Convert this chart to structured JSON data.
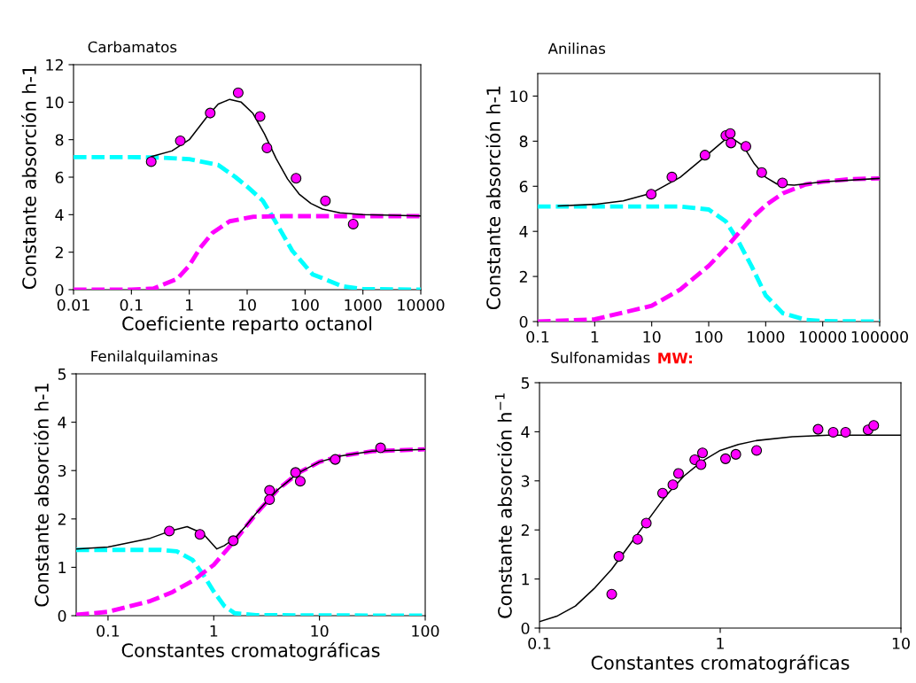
{
  "chart_data": [
    {
      "type": "scatter",
      "title": "Carbamatos",
      "xlabel": "Coeficiente reparto octanol",
      "ylabel": "Constante absorción h-1",
      "log": "x",
      "xlim": [
        0.01,
        10000
      ],
      "xticks": [
        0.01,
        0.1,
        1,
        10,
        100,
        1000,
        10000
      ],
      "ylim": [
        0,
        12
      ],
      "yticks": [
        0,
        2,
        4,
        6,
        8,
        10,
        12
      ],
      "series": [
        {
          "type": "line",
          "color": "#00ffff",
          "line_style": "dashed",
          "marker": "none",
          "x": [
            0.01,
            0.1,
            0.3,
            1,
            3.16,
            6.3,
            10,
            18.6,
            29.5,
            60,
            135,
            437,
            1000,
            10000
          ],
          "values": [
            7.07,
            7.07,
            7.05,
            6.96,
            6.65,
            6.0,
            5.5,
            4.75,
            3.73,
            2.08,
            0.82,
            0.19,
            0.03,
            0
          ]
        },
        {
          "type": "line",
          "color": "#ff00ff",
          "line_style": "dashed",
          "marker": "none",
          "x": [
            0.01,
            0.1,
            0.24,
            0.62,
            1,
            1.55,
            2.5,
            5,
            12.9,
            40,
            10000
          ],
          "values": [
            0,
            0,
            0.06,
            0.58,
            1.29,
            2.24,
            3.02,
            3.65,
            3.89,
            3.92,
            3.92
          ]
        },
        {
          "type": "line",
          "color": "#000000",
          "line_style": "solid",
          "marker": "none",
          "x": [
            0.22,
            0.5,
            1,
            2,
            3.16,
            5,
            7.9,
            12.6,
            20,
            31.6,
            50,
            79,
            126,
            200,
            400,
            1000,
            10000
          ],
          "values": [
            7.1,
            7.4,
            8.0,
            9.2,
            9.9,
            10.15,
            10.0,
            9.4,
            8.3,
            7.0,
            5.9,
            5.1,
            4.6,
            4.3,
            4.1,
            4.0,
            3.93
          ]
        },
        {
          "color": "#ff00ff",
          "marker": "circle",
          "x": [
            0.22,
            0.7,
            2.3,
            7.0,
            16.7,
            22,
            70,
            225,
            680
          ],
          "values": [
            6.83,
            7.94,
            9.42,
            10.5,
            9.24,
            7.56,
            5.94,
            4.74,
            3.5
          ]
        }
      ]
    },
    {
      "type": "scatter",
      "title": "Anilinas",
      "ylabel": "Constante absorción h-1",
      "log": "x",
      "xlim": [
        0.1,
        100000
      ],
      "xticks": [
        0.1,
        1,
        10,
        100,
        1000,
        10000,
        100000
      ],
      "ylim": [
        0,
        11
      ],
      "yticks": [
        0,
        2,
        4,
        6,
        8,
        10
      ],
      "series": [
        {
          "type": "line",
          "color": "#00ffff",
          "line_style": "dashed",
          "marker": "none",
          "x": [
            0.1,
            31.6,
            100,
            200,
            316,
            562,
            1000,
            2000,
            5000,
            10000,
            100000
          ],
          "values": [
            5.1,
            5.1,
            4.97,
            4.44,
            3.65,
            2.47,
            1.16,
            0.37,
            0.08,
            0.02,
            0
          ]
        },
        {
          "type": "line",
          "color": "#ff00ff",
          "line_style": "dashed",
          "marker": "none",
          "x": [
            0.1,
            1,
            10,
            31.6,
            100,
            200,
            316,
            562,
            1000,
            2000,
            5000,
            10000,
            31600,
            100000
          ],
          "values": [
            0,
            0.1,
            0.7,
            1.42,
            2.47,
            3.26,
            3.85,
            4.57,
            5.16,
            5.69,
            6.08,
            6.2,
            6.32,
            6.35
          ]
        },
        {
          "type": "line",
          "color": "#000000",
          "line_style": "solid",
          "marker": "none",
          "x": [
            0.23,
            1,
            3.16,
            10,
            31.6,
            100,
            200,
            251,
            400,
            631,
            1000,
            1580,
            3160,
            10000,
            100000
          ],
          "values": [
            5.13,
            5.2,
            5.35,
            5.7,
            6.4,
            7.45,
            8.1,
            8.15,
            7.8,
            7.0,
            6.4,
            6.1,
            6.05,
            6.2,
            6.35
          ]
        },
        {
          "color": "#ff00ff",
          "marker": "circle",
          "x": [
            9.8,
            22.6,
            86,
            200,
            239,
            246,
            449,
            851,
            1966
          ],
          "values": [
            5.65,
            6.41,
            7.38,
            8.25,
            8.34,
            7.92,
            7.77,
            6.61,
            6.15
          ]
        }
      ]
    },
    {
      "type": "scatter",
      "title": "Fenilalquilaminas",
      "xlabel": "Constantes cromatográficas",
      "ylabel": "Constante absorción h-1",
      "log": "x",
      "xlim": [
        0.05,
        100
      ],
      "xticks": [
        0.1,
        1,
        10,
        100
      ],
      "ylim": [
        0,
        5
      ],
      "yticks": [
        0,
        1,
        2,
        3,
        4,
        5
      ],
      "series": [
        {
          "type": "line",
          "color": "#00ffff",
          "line_style": "dashed",
          "marker": "none",
          "x": [
            0.05,
            0.316,
            0.447,
            0.631,
            0.794,
            1,
            1.26,
            1.58,
            2.5,
            100
          ],
          "values": [
            1.36,
            1.36,
            1.33,
            1.15,
            0.85,
            0.5,
            0.2,
            0.05,
            0.01,
            0
          ]
        },
        {
          "type": "line",
          "color": "#ff00ff",
          "line_style": "dashed",
          "marker": "none",
          "x": [
            0.05,
            0.1,
            0.25,
            0.4,
            0.631,
            1,
            1.58,
            2.5,
            4,
            6.3,
            10,
            15.8,
            31.6,
            100
          ],
          "values": [
            0.02,
            0.08,
            0.3,
            0.48,
            0.72,
            1.05,
            1.55,
            2.1,
            2.6,
            2.95,
            3.18,
            3.3,
            3.4,
            3.44
          ]
        },
        {
          "type": "line",
          "color": "#000000",
          "line_style": "solid",
          "marker": "none",
          "x": [
            0.05,
            0.1,
            0.25,
            0.4,
            0.56,
            0.79,
            1.07,
            1.26,
            1.58,
            2.0,
            2.5,
            4,
            6.3,
            10,
            15.8,
            31.6,
            100
          ],
          "values": [
            1.38,
            1.42,
            1.6,
            1.76,
            1.84,
            1.7,
            1.38,
            1.45,
            1.6,
            1.85,
            2.11,
            2.6,
            2.95,
            3.18,
            3.3,
            3.4,
            3.44
          ]
        },
        {
          "color": "#ff00ff",
          "marker": "circle",
          "x": [
            0.38,
            0.74,
            1.53,
            3.37,
            3.37,
            5.94,
            6.58,
            14.1,
            37.8
          ],
          "values": [
            1.75,
            1.68,
            1.55,
            2.59,
            2.4,
            2.96,
            2.78,
            3.23,
            3.47
          ]
        }
      ]
    },
    {
      "type": "scatter",
      "title": "Sulfonamidas",
      "annotations": [
        "MW:"
      ],
      "xlabel": "Constantes cromatográficas",
      "ylabel": "Constante absorción h$^{−1}$",
      "log": "x",
      "xlim": [
        0.1,
        10
      ],
      "xticks": [
        0.1,
        1,
        10
      ],
      "ylim": [
        0,
        5
      ],
      "yticks": [
        0,
        1,
        2,
        3,
        4,
        5
      ],
      "series": [
        {
          "type": "line",
          "color": "#000000",
          "line_style": "solid",
          "marker": "none",
          "x": [
            0.1,
            0.126,
            0.158,
            0.2,
            0.251,
            0.316,
            0.398,
            0.501,
            0.631,
            0.794,
            1,
            1.26,
            1.58,
            2.51,
            3.98,
            10
          ],
          "values": [
            0.13,
            0.25,
            0.45,
            0.8,
            1.2,
            1.7,
            2.2,
            2.7,
            3.1,
            3.4,
            3.62,
            3.74,
            3.82,
            3.9,
            3.93,
            3.93
          ]
        },
        {
          "color": "#ff00ff",
          "marker": "circle",
          "x": [
            0.251,
            0.275,
            0.349,
            0.39,
            0.48,
            0.547,
            0.588,
            0.723,
            0.783,
            0.798,
            1.07,
            1.22,
            1.59,
            3.48,
            4.22,
            4.94,
            6.58,
            7.07
          ],
          "values": [
            0.69,
            1.46,
            1.81,
            2.14,
            2.75,
            2.92,
            3.15,
            3.43,
            3.33,
            3.57,
            3.45,
            3.54,
            3.62,
            4.05,
            3.99,
            3.99,
            4.04,
            4.13
          ]
        }
      ]
    }
  ]
}
